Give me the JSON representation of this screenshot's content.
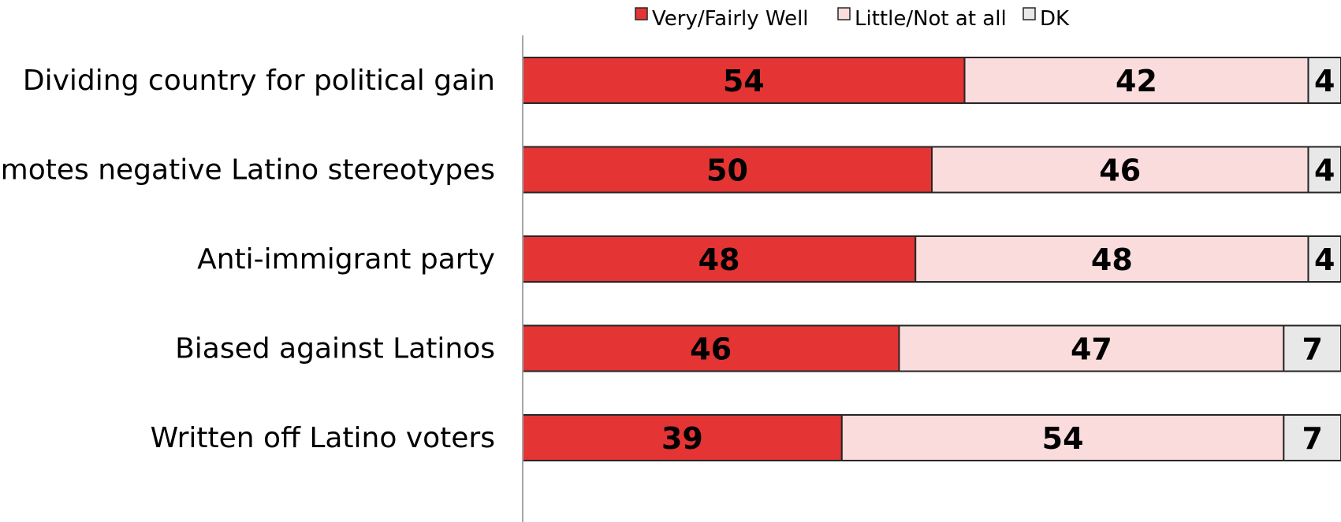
{
  "chart_data": {
    "type": "bar",
    "orientation": "horizontal",
    "stacked": true,
    "categories": [
      "Dividing country for political gain",
      "Promotes negative Latino stereotypes",
      "Anti-immigrant party",
      "Biased against Latinos",
      "Written off Latino voters"
    ],
    "series": [
      {
        "name": "Very/Fairly Well",
        "color": "#e43434",
        "values": [
          54,
          50,
          48,
          46,
          39
        ]
      },
      {
        "name": "Little/Not at all",
        "color": "#fadcdc",
        "values": [
          42,
          46,
          48,
          47,
          54
        ]
      },
      {
        "name": "DK",
        "color": "#e8e8e8",
        "values": [
          4,
          4,
          4,
          7,
          7
        ]
      }
    ],
    "xlim": [
      0,
      100
    ],
    "legend_position": "top",
    "grid": false,
    "title": "",
    "xlabel": "",
    "ylabel": ""
  }
}
